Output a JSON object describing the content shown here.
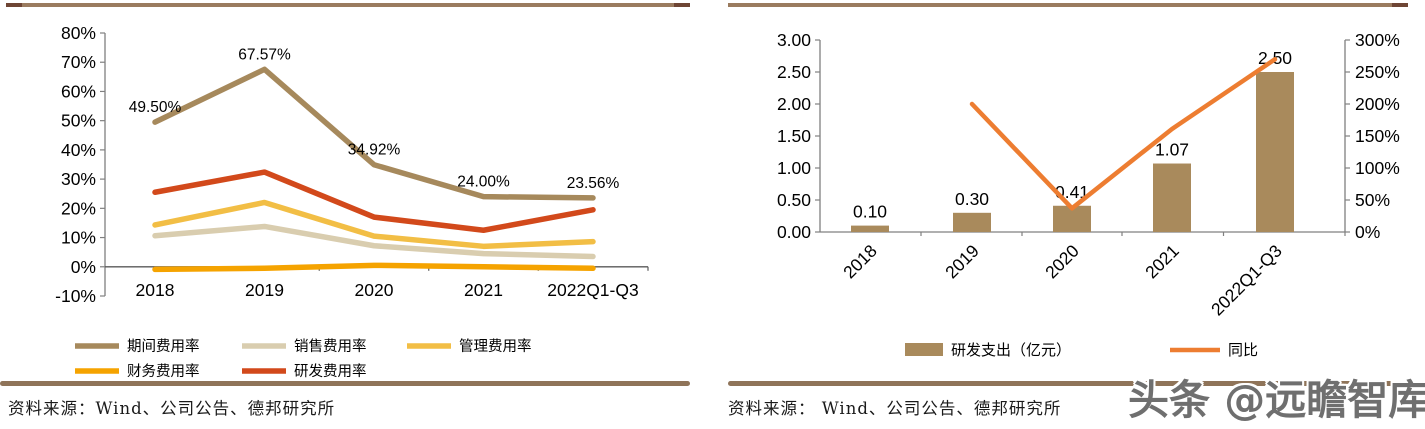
{
  "watermark": {
    "text": "头条 @远瞻智库",
    "color": "#6f6f6f"
  },
  "figures": [
    {
      "name": "expense-ratio-trend",
      "source": "资料来源：Wind、公司公告、德邦研究所"
    },
    {
      "name": "rd-spending-trend",
      "source": "资料来源： Wind、公司公告、德邦研究所"
    }
  ],
  "colors": {
    "panel_rule_top": "#9A7B5F",
    "panel_rule_cap": "#6E4534",
    "panel_rule_bottom": "#8F7459",
    "y_axis": "#808080",
    "x_axis": "#595959",
    "label_text": "#000000"
  },
  "chart_data": [
    {
      "type": "line",
      "categories": [
        "2018",
        "2019",
        "2020",
        "2021",
        "2022Q1-Q3"
      ],
      "series": [
        {
          "name": "财务费用率",
          "color": "#F5A300",
          "values": [
            -0.9,
            -0.5,
            0.5,
            0.0,
            -0.5
          ]
        },
        {
          "name": "销售费用率",
          "color": "#D9CDAF",
          "values": [
            10.6,
            13.8,
            7.2,
            4.5,
            3.5
          ]
        },
        {
          "name": "管理费用率",
          "color": "#F2BE45",
          "values": [
            14.3,
            22.0,
            10.5,
            7.0,
            8.6
          ]
        },
        {
          "name": "研发费用率",
          "color": "#D2491B",
          "values": [
            25.5,
            32.4,
            17.0,
            12.5,
            19.5
          ]
        },
        {
          "name": "期间费用率",
          "color": "#A6895C",
          "values": [
            49.5,
            67.57,
            34.92,
            24.0,
            23.56
          ],
          "point_labels": [
            "49.50%",
            "67.57%",
            "34.92%",
            "24.00%",
            "23.56%"
          ]
        }
      ],
      "ylim": [
        -10,
        80
      ],
      "ytick_step": 10,
      "yticks": [
        "80%",
        "70%",
        "60%",
        "50%",
        "40%",
        "30%",
        "20%",
        "10%",
        "0%",
        "-10%"
      ],
      "grid": false,
      "legend_position": "bottom",
      "legend_rows": [
        [
          "期间费用率",
          "销售费用率",
          "管理费用率"
        ],
        [
          "财务费用率",
          "研发费用率"
        ]
      ]
    },
    {
      "type": "bar+line",
      "categories": [
        "2018",
        "2019",
        "2020",
        "2021",
        "2022Q1-Q3"
      ],
      "bar_series": {
        "name": "研发支出（亿元）",
        "color": "#A98A5C",
        "axis": "left",
        "values": [
          0.1,
          0.3,
          0.41,
          1.07,
          2.5
        ],
        "point_labels": [
          "0.10",
          "0.30",
          "0.41",
          "1.07",
          "2.50"
        ]
      },
      "line_series": {
        "name": "同比",
        "color": "#ED7D31",
        "axis": "right",
        "unit": "%",
        "values": [
          null,
          200,
          37,
          161,
          270
        ]
      },
      "left_ylim": [
        0,
        3.0
      ],
      "left_yticks": [
        "3.00",
        "2.50",
        "2.00",
        "1.50",
        "1.00",
        "0.50",
        "0.00"
      ],
      "right_ylim": [
        0,
        300
      ],
      "right_yticks": [
        "300%",
        "250%",
        "200%",
        "150%",
        "100%",
        "50%",
        "0%"
      ],
      "grid": false,
      "legend_position": "bottom"
    }
  ]
}
